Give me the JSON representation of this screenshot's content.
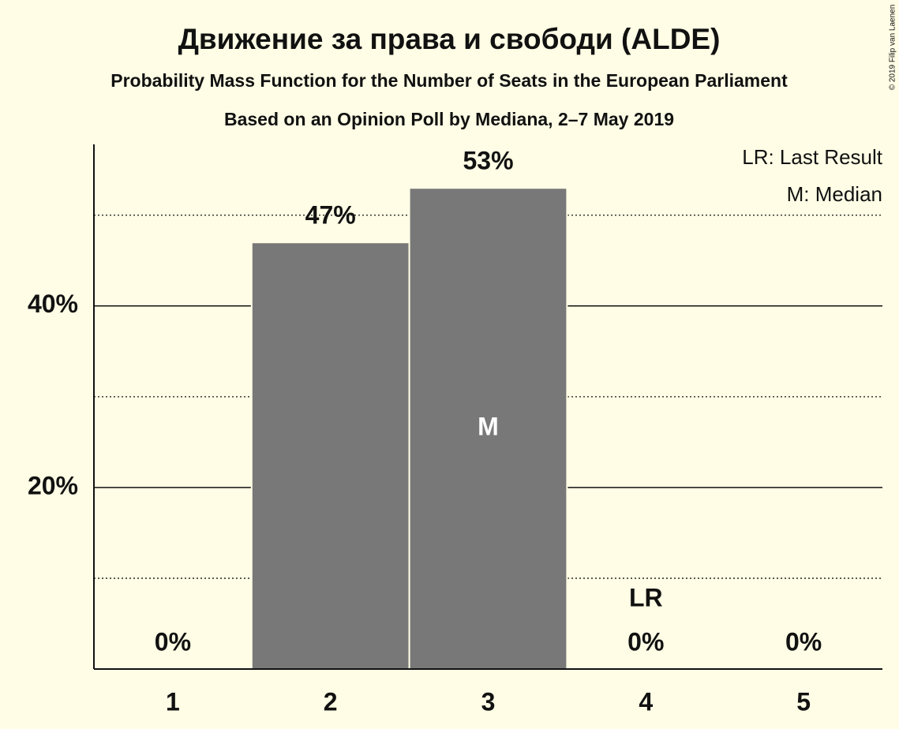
{
  "chart_data": {
    "type": "bar",
    "title": "Движение за права и свободи (ALDE)",
    "subtitle": "Probability Mass Function for the Number of Seats in the European Parliament",
    "subtitle2": "Based on an Opinion Poll by Mediana, 2–7 May 2019",
    "copyright": "© 2019 Filip van Laenen",
    "categories": [
      "1",
      "2",
      "3",
      "4",
      "5"
    ],
    "values": [
      0,
      47,
      53,
      0,
      0
    ],
    "value_labels": [
      "0%",
      "47%",
      "53%",
      "0%",
      "0%"
    ],
    "color": "#787878",
    "ylim": [
      0,
      57.8
    ],
    "yticks": [
      {
        "value": 20,
        "label": "20%"
      },
      {
        "value": 40,
        "label": "40%"
      }
    ],
    "minor_gridlines": [
      10,
      30,
      50
    ],
    "grid": true,
    "annotations": [
      {
        "text": "M",
        "category": "3",
        "position": "inside"
      },
      {
        "text": "LR",
        "category": "4",
        "position": "above"
      }
    ],
    "legend": [
      "LR: Last Result",
      "M: Median"
    ],
    "legend_position": "upper right"
  }
}
